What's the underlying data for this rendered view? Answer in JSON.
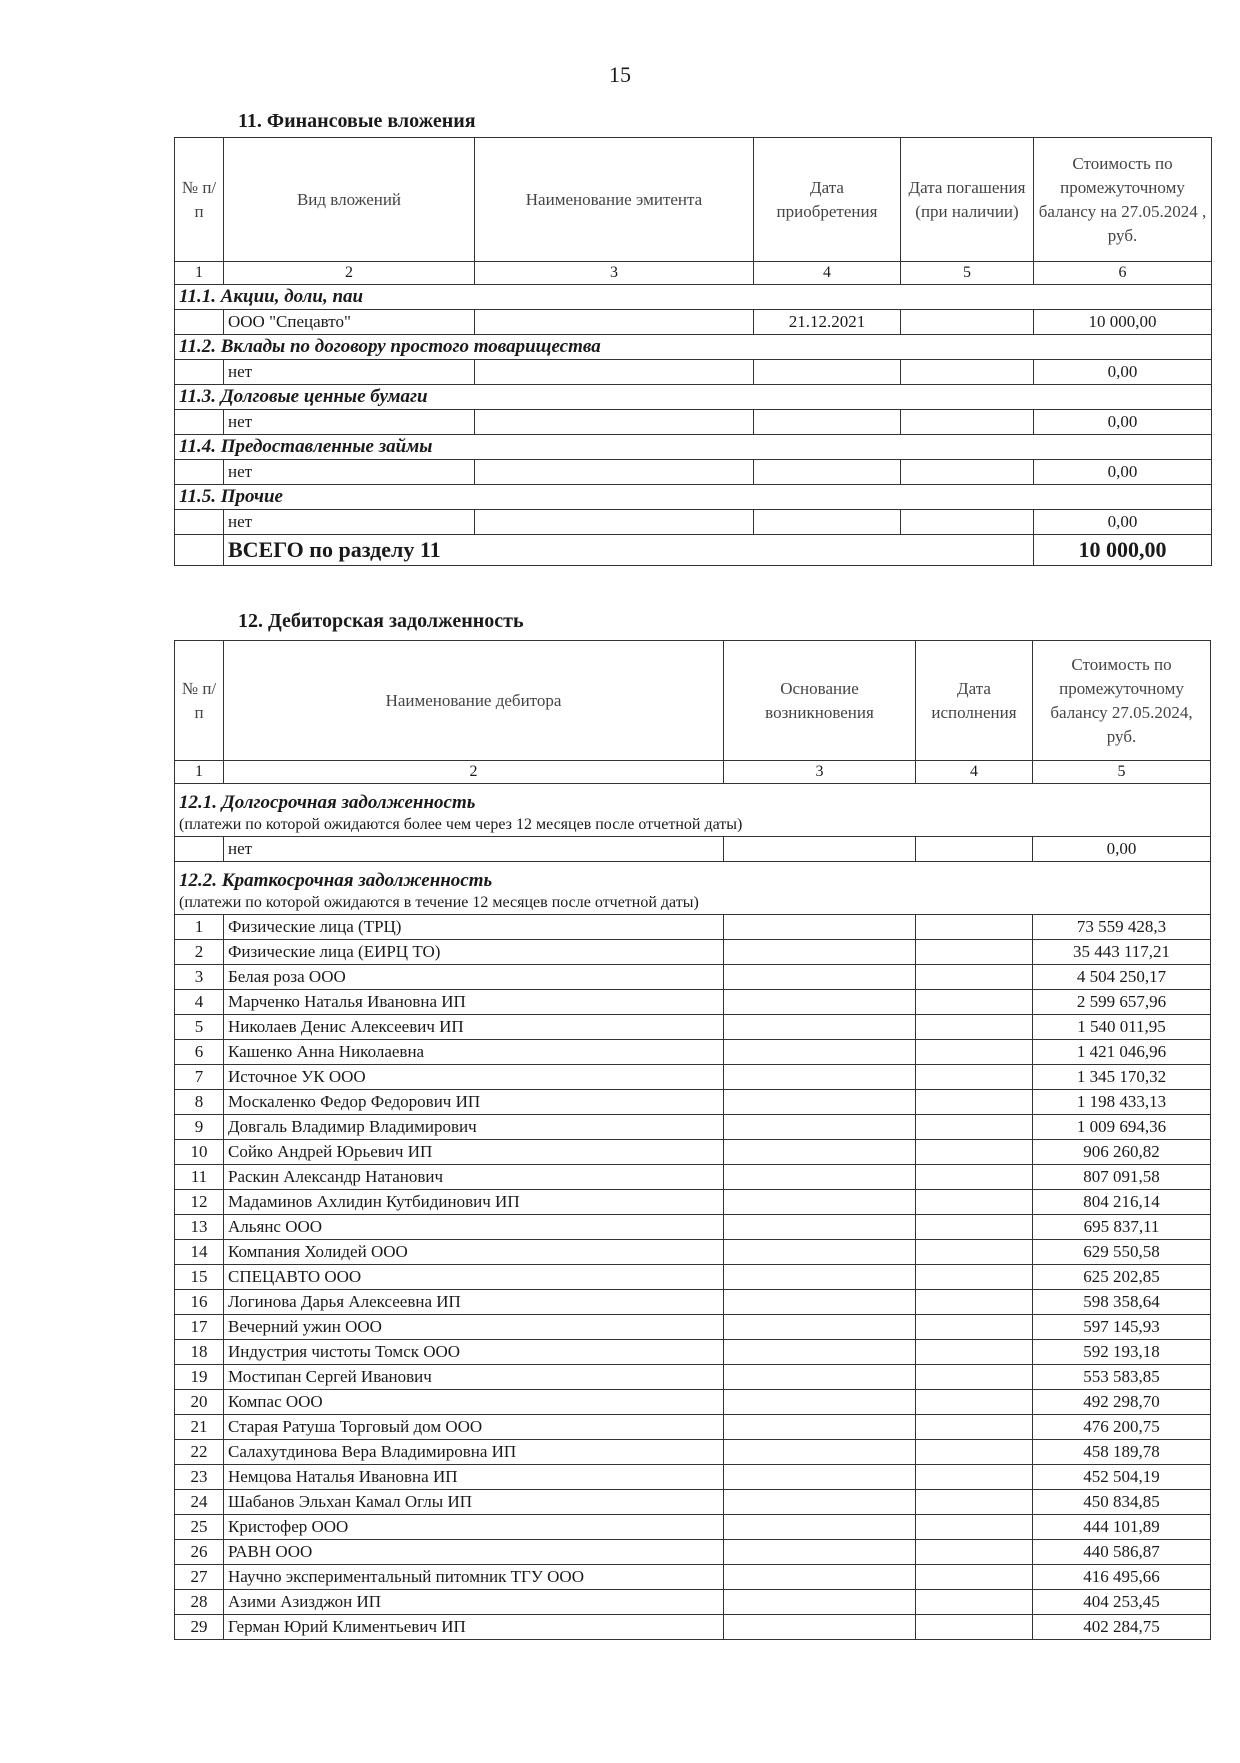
{
  "page_number": "15",
  "section11": {
    "title": "11. Финансовые вложения",
    "headers": [
      "№ п/п",
      "Вид вложений",
      "Наименование эмитента",
      "Дата приобретения",
      "Дата погашения (при наличии)",
      "Стоимость по промежуточному балансу на 27.05.2024 , руб."
    ],
    "column_numbers": [
      "1",
      "2",
      "3",
      "4",
      "5",
      "6"
    ],
    "groups": [
      {
        "title": "11.1. Акции, доли, паи",
        "rows": [
          {
            "name": "ООО \"Спецавто\"",
            "issuer": "",
            "acquired": "21.12.2021",
            "maturity": "",
            "value": "10 000,00"
          }
        ]
      },
      {
        "title": "11.2. Вклады по договору простого товарищества",
        "rows": [
          {
            "name": "нет",
            "issuer": "",
            "acquired": "",
            "maturity": "",
            "value": "0,00"
          }
        ]
      },
      {
        "title": "11.3. Долговые ценные бумаги",
        "rows": [
          {
            "name": "нет",
            "issuer": "",
            "acquired": "",
            "maturity": "",
            "value": "0,00"
          }
        ]
      },
      {
        "title": "11.4. Предоставленные займы",
        "rows": [
          {
            "name": "нет",
            "issuer": "",
            "acquired": "",
            "maturity": "",
            "value": "0,00"
          }
        ]
      },
      {
        "title": "11.5. Прочие",
        "rows": [
          {
            "name": "нет",
            "issuer": "",
            "acquired": "",
            "maturity": "",
            "value": "0,00"
          }
        ]
      }
    ],
    "total_label": "ВСЕГО по разделу 11",
    "total_value": "10 000,00"
  },
  "section12": {
    "title": "12. Дебиторская задолженность",
    "headers": [
      "№ п/п",
      "Наименование дебитора",
      "Основание возникновения",
      "Дата исполнения",
      "Стоимость по промежуточному балансу 27.05.2024, руб."
    ],
    "column_numbers": [
      "1",
      "2",
      "3",
      "4",
      "5"
    ],
    "long_term": {
      "title": "12.1. Долгосрочная задолженность",
      "note": "(платежи по которой ожидаются более чем через 12 месяцев после отчетной даты)",
      "rows": [
        {
          "n": "",
          "name": "нет",
          "value": "0,00"
        }
      ]
    },
    "short_term": {
      "title": "12.2. Краткосрочная задолженность",
      "note": "(платежи по которой ожидаются в течение 12 месяцев после отчетной даты)",
      "rows": [
        {
          "n": "1",
          "name": "Физические лица (ТРЦ)",
          "value": "73 559 428,3"
        },
        {
          "n": "2",
          "name": "Физические лица (ЕИРЦ ТО)",
          "value": "35 443 117,21"
        },
        {
          "n": "3",
          "name": "Белая роза ООО",
          "value": "4 504 250,17"
        },
        {
          "n": "4",
          "name": "Марченко Наталья Ивановна ИП",
          "value": "2 599 657,96"
        },
        {
          "n": "5",
          "name": "Николаев Денис Алексеевич ИП",
          "value": "1 540 011,95"
        },
        {
          "n": "6",
          "name": "Кашенко Анна Николаевна",
          "value": "1 421 046,96"
        },
        {
          "n": "7",
          "name": "Источное УК ООО",
          "value": "1 345 170,32"
        },
        {
          "n": "8",
          "name": "Москаленко Федор Федорович ИП",
          "value": "1 198 433,13"
        },
        {
          "n": "9",
          "name": "Довгаль Владимир Владимирович",
          "value": "1 009 694,36"
        },
        {
          "n": "10",
          "name": "Сойко Андрей Юрьевич ИП",
          "value": "906 260,82"
        },
        {
          "n": "11",
          "name": "Раскин Александр Натанович",
          "value": "807 091,58"
        },
        {
          "n": "12",
          "name": "Мадаминов Ахлидин Кутбидинович ИП",
          "value": "804 216,14"
        },
        {
          "n": "13",
          "name": "Альянс ООО",
          "value": "695 837,11"
        },
        {
          "n": "14",
          "name": "Компания Холидей ООО",
          "value": "629 550,58"
        },
        {
          "n": "15",
          "name": "СПЕЦАВТО ООО",
          "value": "625 202,85"
        },
        {
          "n": "16",
          "name": "Логинова Дарья Алексеевна ИП",
          "value": "598 358,64"
        },
        {
          "n": "17",
          "name": "Вечерний ужин ООО",
          "value": "597 145,93"
        },
        {
          "n": "18",
          "name": "Индустрия чистоты Томск ООО",
          "value": "592 193,18"
        },
        {
          "n": "19",
          "name": "Мостипан Сергей Иванович",
          "value": "553 583,85"
        },
        {
          "n": "20",
          "name": "Компас ООО",
          "value": "492 298,70"
        },
        {
          "n": "21",
          "name": "Старая Ратуша Торговый дом ООО",
          "value": "476 200,75"
        },
        {
          "n": "22",
          "name": "Салахутдинова Вера Владимировна ИП",
          "value": "458 189,78"
        },
        {
          "n": "23",
          "name": "Немцова Наталья Ивановна ИП",
          "value": "452 504,19"
        },
        {
          "n": "24",
          "name": "Шабанов Эльхан Камал Оглы ИП",
          "value": "450 834,85"
        },
        {
          "n": "25",
          "name": "Кристофер ООО",
          "value": "444 101,89"
        },
        {
          "n": "26",
          "name": "РАВН ООО",
          "value": "440 586,87"
        },
        {
          "n": "27",
          "name": "Научно экспериментальный питомник ТГУ ООО",
          "value": "416 495,66"
        },
        {
          "n": "28",
          "name": "Азими Азизджон ИП",
          "value": "404 253,45"
        },
        {
          "n": "29",
          "name": "Герман Юрий Климентьевич ИП",
          "value": "402 284,75"
        }
      ]
    }
  }
}
